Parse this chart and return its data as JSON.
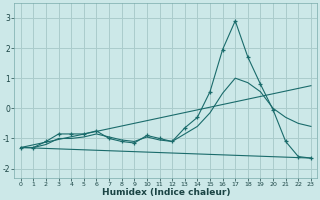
{
  "xlabel": "Humidex (Indice chaleur)",
  "background_color": "#cce8e8",
  "grid_color": "#aacccc",
  "line_color": "#1a6b6b",
  "xlim": [
    -0.5,
    23.5
  ],
  "ylim": [
    -2.3,
    3.5
  ],
  "xticks": [
    0,
    1,
    2,
    3,
    4,
    5,
    6,
    7,
    8,
    9,
    10,
    11,
    12,
    13,
    14,
    15,
    16,
    17,
    18,
    19,
    20,
    21,
    22,
    23
  ],
  "yticks": [
    -2,
    -1,
    0,
    1,
    2,
    3
  ],
  "series": [
    {
      "x": [
        0,
        1,
        2,
        3,
        4,
        5,
        6,
        7,
        8,
        9,
        10,
        11,
        12,
        13,
        14,
        15,
        16,
        17,
        18,
        19,
        20,
        21,
        22,
        23
      ],
      "y": [
        -1.3,
        -1.3,
        -1.1,
        -0.85,
        -0.85,
        -0.85,
        -0.75,
        -1.0,
        -1.1,
        -1.15,
        -0.9,
        -1.0,
        -1.1,
        -0.65,
        -0.3,
        0.55,
        1.95,
        2.9,
        1.7,
        0.8,
        -0.05,
        -1.1,
        -1.6,
        -1.65
      ],
      "marker": "+"
    },
    {
      "x": [
        0,
        1,
        2,
        3,
        4,
        5,
        6,
        7,
        8,
        9,
        10,
        11,
        12,
        13,
        14,
        15,
        16,
        17,
        18,
        19,
        20,
        21,
        22,
        23
      ],
      "y": [
        -1.3,
        -1.3,
        -1.2,
        -1.0,
        -1.0,
        -0.95,
        -0.85,
        -0.95,
        -1.05,
        -1.1,
        -0.95,
        -1.05,
        -1.1,
        -0.85,
        -0.6,
        -0.15,
        0.5,
        1.0,
        0.85,
        0.55,
        0.0,
        -0.3,
        -0.5,
        -0.6
      ],
      "marker": null
    },
    {
      "x": [
        0,
        23
      ],
      "y": [
        -1.3,
        0.75
      ],
      "marker": null
    },
    {
      "x": [
        0,
        23
      ],
      "y": [
        -1.3,
        -1.65
      ],
      "marker": null
    }
  ]
}
